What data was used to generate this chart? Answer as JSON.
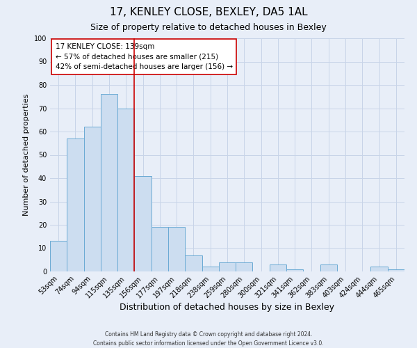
{
  "title": "17, KENLEY CLOSE, BEXLEY, DA5 1AL",
  "subtitle": "Size of property relative to detached houses in Bexley",
  "xlabel": "Distribution of detached houses by size in Bexley",
  "ylabel": "Number of detached properties",
  "bin_labels": [
    "53sqm",
    "74sqm",
    "94sqm",
    "115sqm",
    "135sqm",
    "156sqm",
    "177sqm",
    "197sqm",
    "218sqm",
    "238sqm",
    "259sqm",
    "280sqm",
    "300sqm",
    "321sqm",
    "341sqm",
    "362sqm",
    "383sqm",
    "403sqm",
    "424sqm",
    "444sqm",
    "465sqm"
  ],
  "bar_values": [
    13,
    57,
    62,
    76,
    70,
    41,
    19,
    19,
    7,
    2,
    4,
    4,
    0,
    3,
    1,
    0,
    3,
    0,
    0,
    2,
    1
  ],
  "bar_color": "#ccddf0",
  "bar_edge_color": "#6aaad4",
  "grid_color": "#c8d4e8",
  "background_color": "#e8eef8",
  "vline_x_index": 4,
  "vline_color": "#cc0000",
  "annotation_line1": "17 KENLEY CLOSE: 139sqm",
  "annotation_line2": "← 57% of detached houses are smaller (215)",
  "annotation_line3": "42% of semi-detached houses are larger (156) →",
  "annotation_box_color": "#ffffff",
  "annotation_edge_color": "#cc0000",
  "footer_line1": "Contains HM Land Registry data © Crown copyright and database right 2024.",
  "footer_line2": "Contains public sector information licensed under the Open Government Licence v3.0.",
  "ylim": [
    0,
    100
  ],
  "title_fontsize": 11,
  "subtitle_fontsize": 9,
  "xlabel_fontsize": 9,
  "ylabel_fontsize": 8,
  "tick_fontsize": 7,
  "annotation_fontsize": 7.5,
  "footer_fontsize": 5.5
}
